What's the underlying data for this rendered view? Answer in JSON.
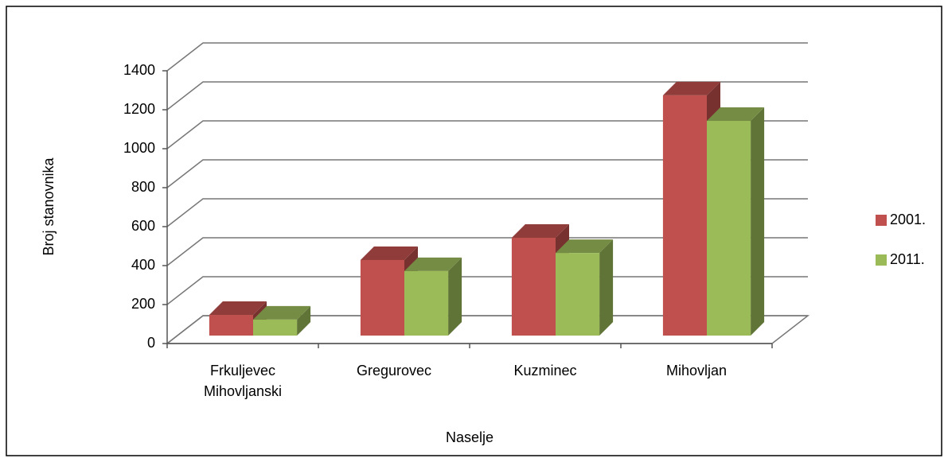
{
  "chart_data": {
    "type": "bar3d",
    "x_label": "Naselje",
    "y_label": "Broj stanovnika",
    "categories": [
      "Frkuljevec Mihovljanski",
      "Gregurovec",
      "Kuzminec",
      "Mihovljan"
    ],
    "series": [
      {
        "name": "2001.",
        "color": "#c0504d",
        "values": [
          106,
          388,
          502,
          1233
        ]
      },
      {
        "name": "2011.",
        "color": "#9bbb59",
        "values": [
          82,
          331,
          424,
          1102
        ]
      }
    ],
    "ylim": [
      0,
      1400
    ],
    "yticks": [
      0,
      200,
      400,
      600,
      800,
      1000,
      1200,
      1400
    ],
    "grid": true,
    "legend": "right"
  }
}
